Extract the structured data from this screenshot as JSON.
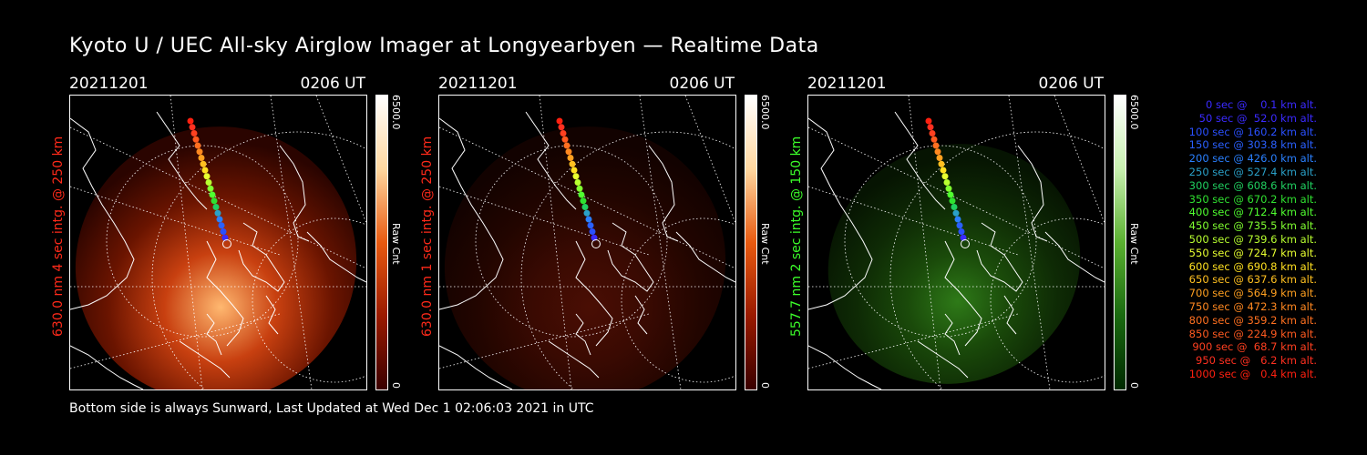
{
  "title": "Kyoto U / UEC All-sky Airglow Imager at Longyearbyen — Realtime Data",
  "footer": "Bottom side is always Sunward, Last Updated at Wed Dec  1 02:06:03 2021 in UTC",
  "panels": [
    {
      "date": "20211201",
      "time": "0206 UT",
      "ylabel": "630.0 nm 4 sec intg. @ 250 km",
      "label_color": "#ff2a1a",
      "cbar_max": "6500.0",
      "cbar_min": "0",
      "cbar_label": "Raw Cnt",
      "cbar_colors": [
        "#3a0000",
        "#9a1a00",
        "#e85a10",
        "#ffd8a0",
        "#ffffff"
      ],
      "intensity": "bright",
      "glow_colors": [
        "#ffb870",
        "#c84010",
        "#6a1400",
        "#2a0400"
      ]
    },
    {
      "date": "20211201",
      "time": "0206 UT",
      "ylabel": "630.0 nm 1 sec intg. @ 250 km",
      "label_color": "#ff2a1a",
      "cbar_max": "6500.0",
      "cbar_min": "0",
      "cbar_label": "Raw Cnt",
      "cbar_colors": [
        "#3a0000",
        "#9a1a00",
        "#e85a10",
        "#ffd8a0",
        "#ffffff"
      ],
      "intensity": "dim",
      "glow_colors": [
        "#4a0e04",
        "#3a0a02",
        "#220500",
        "#120200"
      ]
    },
    {
      "date": "20211201",
      "time": "0206 UT",
      "ylabel": "557.7 nm 2 sec intg. @ 150 km",
      "label_color": "#3cff2a",
      "cbar_max": "6500.0",
      "cbar_min": "0",
      "cbar_label": "Raw Cnt",
      "cbar_colors": [
        "#002a00",
        "#1a6a10",
        "#5ab030",
        "#c8f0b0",
        "#ffffff"
      ],
      "intensity": "green",
      "glow_colors": [
        "#2e7a18",
        "#1a4a0a",
        "#0e2a05",
        "#061402"
      ]
    }
  ],
  "legend": [
    {
      "text": "   0 sec @    0.1 km alt.",
      "color": "#3a2aff"
    },
    {
      "text": "  50 sec @  52.0 km alt.",
      "color": "#3a2aff"
    },
    {
      "text": " 100 sec @ 160.2 km alt.",
      "color": "#2a50ff"
    },
    {
      "text": " 150 sec @ 303.8 km alt.",
      "color": "#2a60ff"
    },
    {
      "text": " 200 sec @ 426.0 km alt.",
      "color": "#2a80ff"
    },
    {
      "text": " 250 sec @ 527.4 km alt.",
      "color": "#2aa0c8"
    },
    {
      "text": " 300 sec @ 608.6 km alt.",
      "color": "#20d060"
    },
    {
      "text": " 350 sec @ 670.2 km alt.",
      "color": "#30e030"
    },
    {
      "text": " 400 sec @ 712.4 km alt.",
      "color": "#50ff30"
    },
    {
      "text": " 450 sec @ 735.5 km alt.",
      "color": "#80ff30"
    },
    {
      "text": " 500 sec @ 739.6 km alt.",
      "color": "#b8ff30"
    },
    {
      "text": " 550 sec @ 724.7 km alt.",
      "color": "#e8ff30"
    },
    {
      "text": " 600 sec @ 690.8 km alt.",
      "color": "#ffe020"
    },
    {
      "text": " 650 sec @ 637.6 km alt.",
      "color": "#ffc020"
    },
    {
      "text": " 700 sec @ 564.9 km alt.",
      "color": "#ffa020"
    },
    {
      "text": " 750 sec @ 472.3 km alt.",
      "color": "#ff8820"
    },
    {
      "text": " 800 sec @ 359.2 km alt.",
      "color": "#ff7020"
    },
    {
      "text": " 850 sec @ 224.9 km alt.",
      "color": "#ff5a20"
    },
    {
      "text": " 900 sec @  68.7 km alt.",
      "color": "#ff4020"
    },
    {
      "text": " 950 sec @   6.2 km alt.",
      "color": "#ff3020"
    },
    {
      "text": "1000 sec @   0.4 km alt.",
      "color": "#ff2010"
    }
  ]
}
